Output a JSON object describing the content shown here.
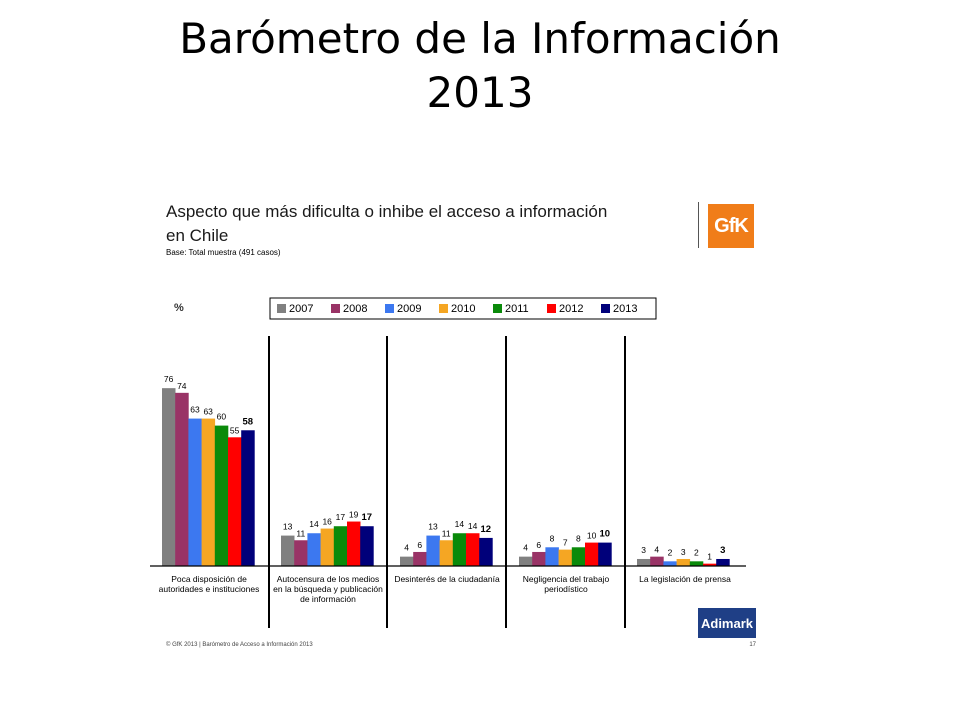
{
  "slide": {
    "title_line1": "Barómetro de la Información",
    "title_line2": "2013"
  },
  "chart_header": {
    "title_line1": "Aspecto que más dificulta o inhibe el acceso a información",
    "title_line2": "en Chile",
    "base": "Base: Total muestra (491 casos)",
    "unit": "%"
  },
  "logos": {
    "gfk": "GfK",
    "adimark": "Adimark"
  },
  "footer": {
    "text": "© GfK 2013 | Barómetro de Acceso a Información 2013",
    "page": "17"
  },
  "chart_data": {
    "type": "bar",
    "categories": [
      [
        "Poca disposición de",
        "autoridades e instituciones"
      ],
      [
        "Autocensura de los medios",
        "en la búsqueda y publicación",
        "de información"
      ],
      [
        "Desinterés de la ciudadanía"
      ],
      [
        "Negligencia del trabajo",
        "periodístico"
      ],
      [
        "La legislación de prensa"
      ]
    ],
    "series": [
      {
        "name": "2007",
        "color": "#808080",
        "values": [
          76,
          13,
          4,
          4,
          3
        ]
      },
      {
        "name": "2008",
        "color": "#993366",
        "values": [
          74,
          11,
          6,
          6,
          4
        ]
      },
      {
        "name": "2009",
        "color": "#3c78f0",
        "values": [
          63,
          14,
          13,
          8,
          2
        ]
      },
      {
        "name": "2010",
        "color": "#f5a623",
        "values": [
          63,
          16,
          11,
          7,
          3
        ]
      },
      {
        "name": "2011",
        "color": "#0a8a0a",
        "values": [
          60,
          17,
          14,
          8,
          2
        ]
      },
      {
        "name": "2012",
        "color": "#ff0000",
        "values": [
          55,
          19,
          14,
          10,
          1
        ]
      },
      {
        "name": "2013",
        "color": "#00007a",
        "values": [
          58,
          17,
          12,
          10,
          3
        ]
      }
    ],
    "ylim": [
      0,
      80
    ],
    "legend": "top",
    "grid": false
  }
}
